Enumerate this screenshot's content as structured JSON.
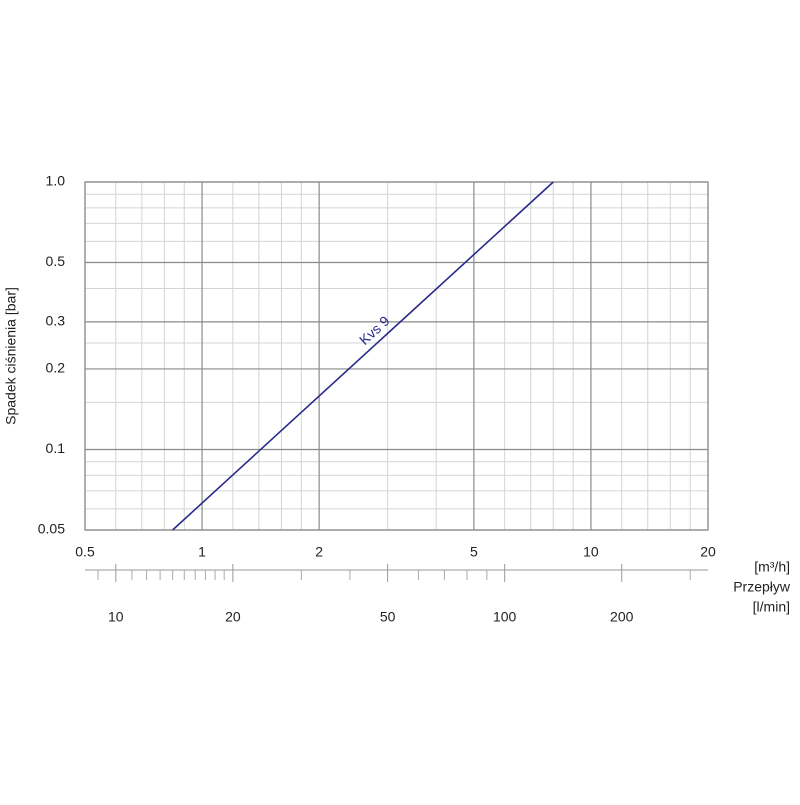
{
  "chart_data": {
    "type": "line",
    "ylabel": "Spadek ciśnienia [bar]",
    "x_unit": "[m³/h]",
    "xlabel": "Przepływ",
    "x2_unit": "[l/min]",
    "log_x": true,
    "log_y": true,
    "grid": true,
    "xlim": [
      0.5,
      20
    ],
    "xticks": [
      0.5,
      1,
      2,
      5,
      10,
      20
    ],
    "xminorticks": [
      0.6,
      0.7,
      0.8,
      0.9,
      1.2,
      1.4,
      1.6,
      1.8,
      3,
      4,
      6,
      7,
      8,
      9,
      12,
      14,
      16,
      18
    ],
    "ylim": [
      0.05,
      1
    ],
    "yticks": [
      0.05,
      0.1,
      0.2,
      0.3,
      0.5,
      {
        "value": 1,
        "label": "1.0"
      }
    ],
    "yminorticks": [
      0.06,
      0.07,
      0.08,
      0.09,
      0.15,
      0.25,
      0.4,
      0.6,
      0.7,
      0.8,
      0.9
    ],
    "x2lim": [
      8.333,
      333.333
    ],
    "x2ticks": [
      10,
      20,
      50,
      100,
      200
    ],
    "x2minorticks": [
      9,
      11,
      12,
      13,
      14,
      15,
      16,
      17,
      18,
      19,
      30,
      40,
      60,
      70,
      80,
      90,
      300
    ],
    "series": [
      {
        "name": "Kvs 9",
        "color": "#2a2a8c",
        "x": [
          0.84,
          8.0
        ],
        "values": [
          0.05,
          1.0
        ]
      }
    ]
  }
}
